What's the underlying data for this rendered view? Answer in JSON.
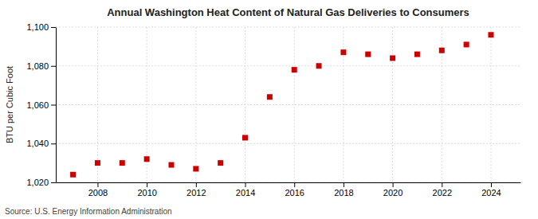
{
  "chart_data": {
    "type": "scatter",
    "title": "Annual Washington Heat Content of Natural Gas Deliveries to Consumers",
    "ylabel": "BTU per Cubic Foot",
    "source": "Source: U.S. Energy Information Administration",
    "x": [
      2007,
      2008,
      2009,
      2010,
      2011,
      2012,
      2013,
      2014,
      2015,
      2016,
      2017,
      2018,
      2019,
      2020,
      2021,
      2022,
      2023,
      2024
    ],
    "values": [
      1024,
      1030,
      1030,
      1032,
      1029,
      1027,
      1030,
      1043,
      1064,
      1078,
      1080,
      1087,
      1086,
      1084,
      1086,
      1088,
      1091,
      1096
    ],
    "color": "#cc0000",
    "marker": "square",
    "xlim": [
      2006.3,
      2025.2
    ],
    "xticks": [
      2008,
      2010,
      2012,
      2014,
      2016,
      2018,
      2020,
      2022,
      2024
    ],
    "ylim": [
      1020,
      1100
    ],
    "yticks": [
      {
        "value": 1020,
        "label": "1,020"
      },
      {
        "value": 1040,
        "label": "1,040"
      },
      {
        "value": 1060,
        "label": "1,060"
      },
      {
        "value": 1080,
        "label": "1,080"
      },
      {
        "value": 1100,
        "label": "1,100"
      }
    ],
    "grid": true
  }
}
